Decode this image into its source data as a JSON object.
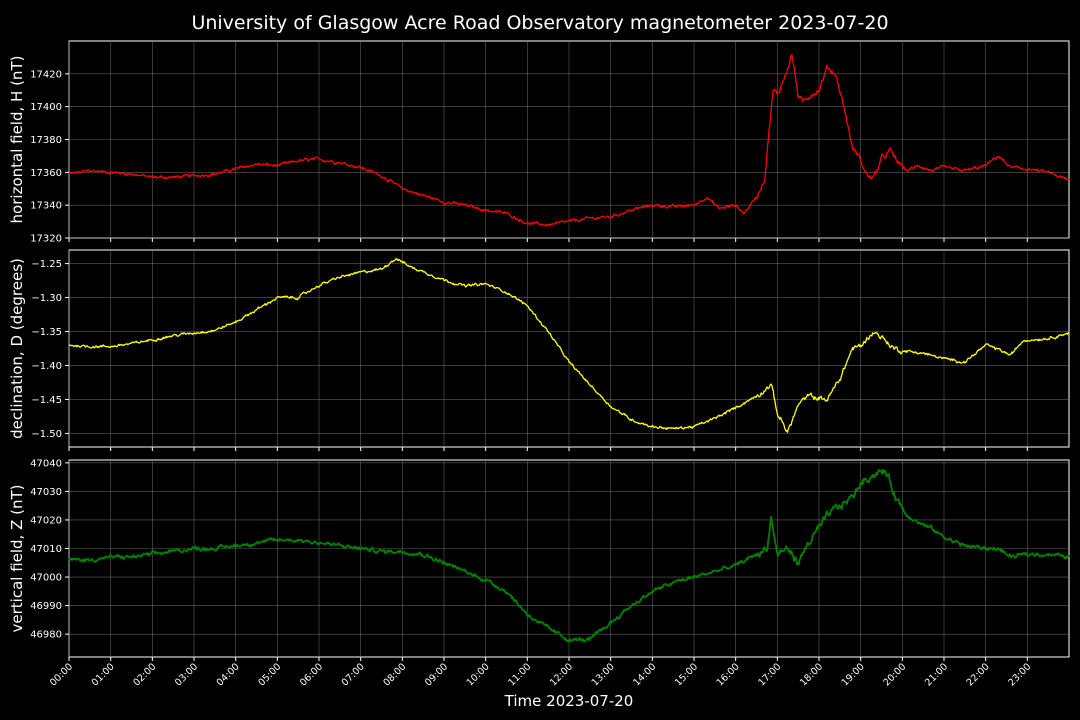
{
  "chart_data": {
    "type": "line",
    "title": "University of Glasgow Acre Road Observatory magnetometer 2023-07-20",
    "xlabel": "Time 2023-07-20",
    "x_tick_labels": [
      "00:00",
      "01:00",
      "02:00",
      "03:00",
      "04:00",
      "05:00",
      "06:00",
      "07:00",
      "08:00",
      "09:00",
      "10:00",
      "11:00",
      "12:00",
      "13:00",
      "14:00",
      "15:00",
      "16:00",
      "17:00",
      "18:00",
      "19:00",
      "20:00",
      "21:00",
      "22:00",
      "23:00"
    ],
    "xlim_hours": [
      0,
      24
    ],
    "grid": true,
    "panels": [
      {
        "ylabel": "horizontal field, H (nT)",
        "color": "#ff0000",
        "ylim": [
          17320,
          17440
        ],
        "yticks": [
          17320,
          17340,
          17360,
          17380,
          17400,
          17420
        ],
        "yticks_fmt": 0,
        "noise": 1.2,
        "x_hours": [
          0,
          0.5,
          1,
          1.5,
          2,
          2.5,
          3,
          3.5,
          4,
          4.5,
          5,
          5.5,
          6,
          6.5,
          7,
          7.5,
          8,
          8.5,
          9,
          9.5,
          10,
          10.5,
          11,
          11.5,
          12,
          12.5,
          13,
          13.5,
          14,
          14.5,
          15,
          15.3,
          15.6,
          16,
          16.2,
          16.5,
          16.7,
          16.8,
          16.9,
          17,
          17.2,
          17.35,
          17.5,
          17.6,
          17.8,
          18,
          18.2,
          18.4,
          18.6,
          18.8,
          19,
          19.1,
          19.3,
          19.5,
          19.7,
          19.9,
          20.1,
          20.4,
          20.7,
          21,
          21.5,
          22,
          22.3,
          22.6,
          23,
          23.5,
          24
        ],
        "values": [
          17359,
          17361,
          17360,
          17359,
          17357,
          17357,
          17358,
          17359,
          17362,
          17365,
          17364,
          17367,
          17368,
          17366,
          17363,
          17358,
          17350,
          17346,
          17342,
          17340,
          17337,
          17335,
          17329,
          17328,
          17330,
          17332,
          17333,
          17337,
          17340,
          17339,
          17340,
          17345,
          17338,
          17340,
          17335,
          17345,
          17357,
          17385,
          17410,
          17407,
          17420,
          17432,
          17407,
          17402,
          17408,
          17410,
          17424,
          17420,
          17400,
          17375,
          17368,
          17360,
          17356,
          17368,
          17373,
          17366,
          17361,
          17364,
          17361,
          17363,
          17361,
          17364,
          17370,
          17363,
          17362,
          17360,
          17355
        ]
      },
      {
        "ylabel": "declination, D (degrees)",
        "color": "#ffff00",
        "ylim": [
          -1.52,
          -1.23
        ],
        "yticks": [
          -1.5,
          -1.45,
          -1.4,
          -1.35,
          -1.3,
          -1.25
        ],
        "yticks_fmt": 2,
        "noise": 0.0025,
        "x_hours": [
          0,
          0.5,
          1,
          1.5,
          2,
          2.5,
          3,
          3.5,
          4,
          4.5,
          5,
          5.5,
          6,
          6.5,
          7,
          7.5,
          7.85,
          8.2,
          8.5,
          9,
          9.5,
          10,
          10.5,
          11,
          11.5,
          12,
          12.5,
          13,
          13.5,
          14,
          14.5,
          15,
          15.5,
          16,
          16.5,
          16.75,
          16.85,
          17,
          17.25,
          17.5,
          17.75,
          18,
          18.2,
          18.5,
          18.8,
          19,
          19.3,
          19.5,
          19.8,
          20,
          20.5,
          21,
          21.5,
          22,
          22.3,
          22.6,
          22.9,
          23.5,
          24
        ],
        "values": [
          -1.37,
          -1.372,
          -1.372,
          -1.368,
          -1.362,
          -1.356,
          -1.352,
          -1.348,
          -1.336,
          -1.318,
          -1.3,
          -1.3,
          -1.282,
          -1.27,
          -1.263,
          -1.258,
          -1.242,
          -1.255,
          -1.262,
          -1.274,
          -1.283,
          -1.28,
          -1.292,
          -1.312,
          -1.35,
          -1.395,
          -1.428,
          -1.46,
          -1.48,
          -1.49,
          -1.493,
          -1.49,
          -1.478,
          -1.462,
          -1.445,
          -1.432,
          -1.428,
          -1.47,
          -1.498,
          -1.458,
          -1.445,
          -1.448,
          -1.45,
          -1.42,
          -1.375,
          -1.372,
          -1.35,
          -1.358,
          -1.375,
          -1.378,
          -1.382,
          -1.39,
          -1.395,
          -1.37,
          -1.376,
          -1.385,
          -1.363,
          -1.36,
          -1.352
        ]
      },
      {
        "ylabel": "vertical field, Z (nT)",
        "color": "#008000",
        "ylim": [
          46972,
          47041
        ],
        "yticks": [
          46980,
          46990,
          47000,
          47010,
          47020,
          47030,
          47040
        ],
        "yticks_fmt": 0,
        "noise": 0.9,
        "x_hours": [
          0,
          0.5,
          1,
          1.5,
          2,
          2.5,
          3,
          3.5,
          4,
          4.5,
          5,
          5.5,
          6,
          6.5,
          7,
          7.5,
          8,
          8.5,
          9,
          9.5,
          10,
          10.5,
          11,
          11.5,
          12,
          12.5,
          13,
          13.5,
          14,
          14.5,
          15,
          15.5,
          16,
          16.5,
          16.75,
          16.85,
          17,
          17.25,
          17.5,
          17.75,
          18,
          18.25,
          18.5,
          18.8,
          19,
          19.3,
          19.6,
          19.85,
          20.1,
          20.4,
          20.7,
          21,
          21.5,
          22,
          22.3,
          22.6,
          23,
          23.5,
          24
        ],
        "values": [
          47006,
          47006,
          47007,
          47007,
          47008,
          47009,
          47010,
          47010,
          47011,
          47012,
          47013,
          47013,
          47012,
          47011,
          47010,
          47009,
          47009,
          47008,
          47005,
          47002,
          46999,
          46995,
          46987,
          46982,
          46978,
          46978,
          46984,
          46990,
          46995,
          46998,
          47000,
          47002,
          47004,
          47008,
          47010,
          47021,
          47008,
          47010,
          47005,
          47012,
          47017,
          47022,
          47025,
          47028,
          47033,
          47036,
          47037,
          47028,
          47022,
          47019,
          47017,
          47014,
          47011,
          47010,
          47010,
          47007,
          47008,
          47008,
          47007
        ]
      }
    ]
  }
}
